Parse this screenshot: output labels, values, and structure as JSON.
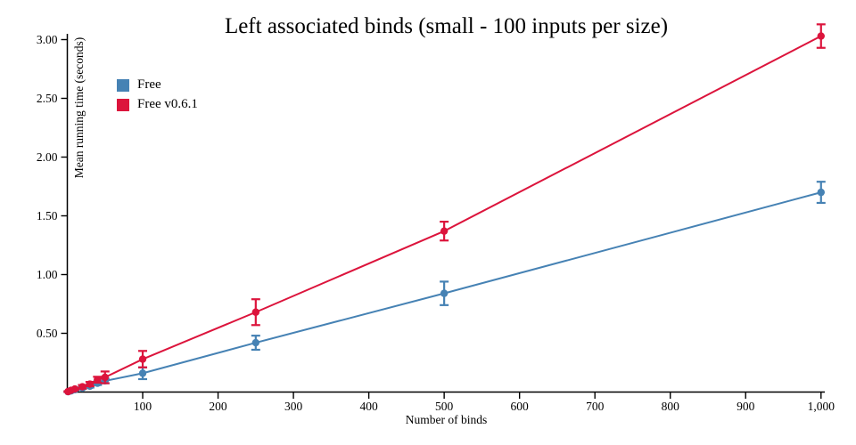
{
  "chart_data": {
    "type": "line",
    "title": "Left associated binds (small - 100 inputs per size)",
    "xlabel": "Number of binds",
    "ylabel": "Mean running time (seconds)",
    "x": [
      1,
      5,
      10,
      20,
      30,
      40,
      50,
      100,
      250,
      500,
      1000
    ],
    "series": [
      {
        "name": "Free",
        "color": "#4682B4",
        "values": [
          0.003,
          0.01,
          0.02,
          0.035,
          0.05,
          0.075,
          0.095,
          0.16,
          0.42,
          0.84,
          1.7
        ],
        "errors": [
          0.003,
          0.004,
          0.006,
          0.008,
          0.012,
          0.015,
          0.02,
          0.05,
          0.06,
          0.1,
          0.09
        ]
      },
      {
        "name": "Free v0.6.1",
        "color": "#DC143C",
        "values": [
          0.004,
          0.015,
          0.026,
          0.045,
          0.068,
          0.105,
          0.125,
          0.28,
          0.68,
          1.37,
          3.03
        ],
        "errors": [
          0.003,
          0.005,
          0.008,
          0.015,
          0.018,
          0.025,
          0.05,
          0.07,
          0.11,
          0.08,
          0.1
        ]
      }
    ],
    "xlim": [
      0,
      1005
    ],
    "ylim": [
      0,
      3.0
    ],
    "x_ticks": [
      {
        "v": 100,
        "label": "100"
      },
      {
        "v": 200,
        "label": "200"
      },
      {
        "v": 300,
        "label": "300"
      },
      {
        "v": 400,
        "label": "400"
      },
      {
        "v": 500,
        "label": "500"
      },
      {
        "v": 600,
        "label": "600"
      },
      {
        "v": 700,
        "label": "700"
      },
      {
        "v": 800,
        "label": "800"
      },
      {
        "v": 900,
        "label": "900"
      },
      {
        "v": 1000,
        "label": "1,000"
      }
    ],
    "y_ticks": [
      {
        "v": 0.5,
        "label": "0.50"
      },
      {
        "v": 1.0,
        "label": "1.00"
      },
      {
        "v": 1.5,
        "label": "1.50"
      },
      {
        "v": 2.0,
        "label": "2.00"
      },
      {
        "v": 2.5,
        "label": "2.50"
      },
      {
        "v": 3.0,
        "label": "3.00"
      }
    ],
    "grid": false,
    "legend_position": "top-left",
    "error_bars": true,
    "axis_color": "#000000",
    "background_color": "#ffffff"
  }
}
